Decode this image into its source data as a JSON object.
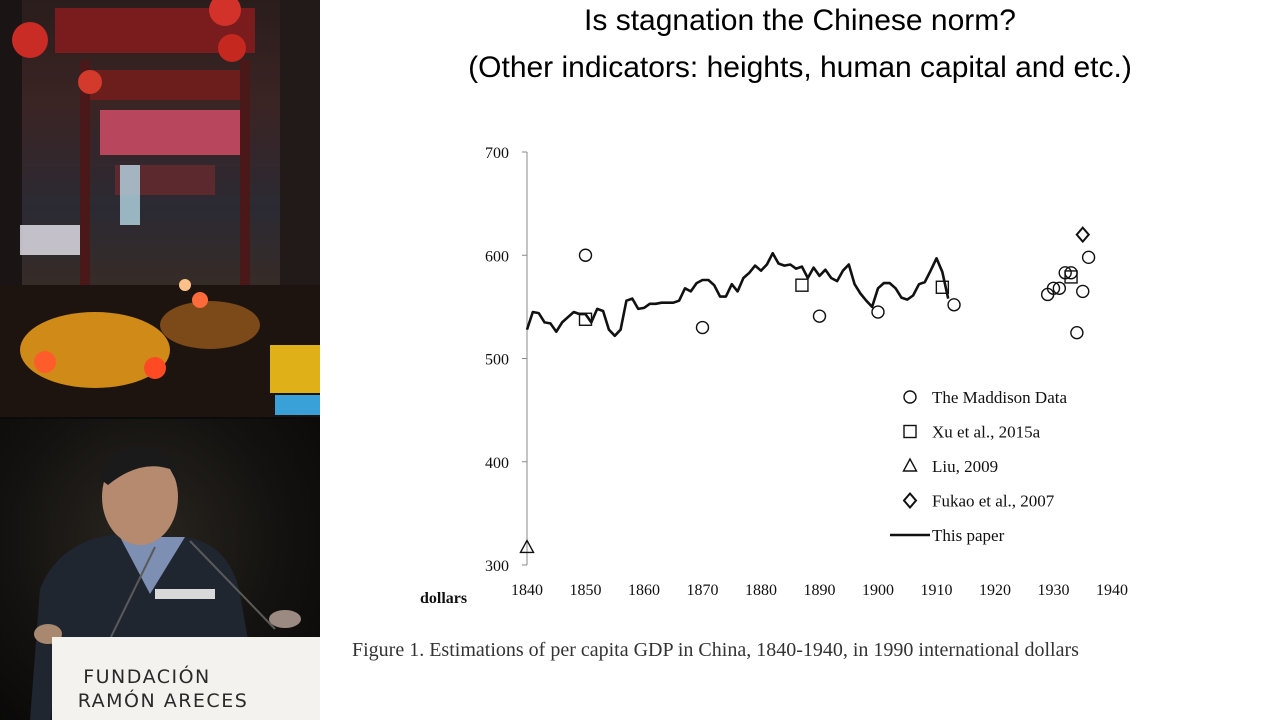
{
  "slide": {
    "title_line1": "Is stagnation the Chinese norm?",
    "title_line2": "(Other indicators: heights, human capital and etc.)",
    "caption": "Figure 1.  Estimations of per capita GDP in China, 1840-1940, in 1990 international dollars"
  },
  "podium": {
    "line1": "FUNDACIÓN",
    "line2": "RAMÓN ARECES"
  },
  "colors": {
    "ink": "#111111",
    "background": "#ffffff"
  },
  "chart_data": {
    "type": "line",
    "title": "",
    "xlabel": "dollars",
    "ylabel": "",
    "xlim": [
      1840,
      1940
    ],
    "ylim": [
      300,
      700
    ],
    "x_ticks": [
      1840,
      1850,
      1860,
      1870,
      1880,
      1890,
      1900,
      1910,
      1920,
      1930,
      1940
    ],
    "y_ticks": [
      300,
      400,
      500,
      600,
      700
    ],
    "legend_position": "lower-right",
    "grid": false,
    "series": [
      {
        "name": "The Maddison Data",
        "marker": "circle",
        "points": [
          [
            1850,
            600
          ],
          [
            1870,
            530
          ],
          [
            1890,
            541
          ],
          [
            1900,
            545
          ],
          [
            1913,
            552
          ],
          [
            1929,
            562
          ],
          [
            1930,
            568
          ],
          [
            1931,
            568
          ],
          [
            1932,
            583
          ],
          [
            1933,
            583
          ],
          [
            1934,
            525
          ],
          [
            1935,
            565
          ],
          [
            1936,
            598
          ]
        ]
      },
      {
        "name": "Xu et al., 2015a",
        "marker": "square",
        "points": [
          [
            1850,
            538
          ],
          [
            1887,
            571
          ],
          [
            1911,
            569
          ],
          [
            1933,
            579
          ]
        ]
      },
      {
        "name": "Liu, 2009",
        "marker": "triangle",
        "points": [
          [
            1840,
            317
          ]
        ]
      },
      {
        "name": "Fukao et al., 2007",
        "marker": "diamond",
        "points": [
          [
            1935,
            620
          ]
        ]
      },
      {
        "name": "This paper",
        "marker": "line",
        "points": [
          [
            1840,
            528
          ],
          [
            1841,
            545
          ],
          [
            1842,
            544
          ],
          [
            1843,
            535
          ],
          [
            1844,
            534
          ],
          [
            1845,
            526
          ],
          [
            1846,
            535
          ],
          [
            1847,
            540
          ],
          [
            1848,
            545
          ],
          [
            1849,
            543
          ],
          [
            1850,
            543
          ],
          [
            1851,
            535
          ],
          [
            1852,
            548
          ],
          [
            1853,
            546
          ],
          [
            1854,
            528
          ],
          [
            1855,
            522
          ],
          [
            1856,
            528
          ],
          [
            1857,
            556
          ],
          [
            1858,
            558
          ],
          [
            1859,
            548
          ],
          [
            1860,
            549
          ],
          [
            1861,
            553
          ],
          [
            1862,
            553
          ],
          [
            1863,
            554
          ],
          [
            1864,
            554
          ],
          [
            1865,
            554
          ],
          [
            1866,
            556
          ],
          [
            1867,
            568
          ],
          [
            1868,
            565
          ],
          [
            1869,
            573
          ],
          [
            1870,
            576
          ],
          [
            1871,
            576
          ],
          [
            1872,
            571
          ],
          [
            1873,
            560
          ],
          [
            1874,
            560
          ],
          [
            1875,
            572
          ],
          [
            1876,
            565
          ],
          [
            1877,
            578
          ],
          [
            1878,
            583
          ],
          [
            1879,
            590
          ],
          [
            1880,
            585
          ],
          [
            1881,
            591
          ],
          [
            1882,
            602
          ],
          [
            1883,
            592
          ],
          [
            1884,
            590
          ],
          [
            1885,
            591
          ],
          [
            1886,
            587
          ],
          [
            1887,
            589
          ],
          [
            1888,
            578
          ],
          [
            1889,
            588
          ],
          [
            1890,
            580
          ],
          [
            1891,
            586
          ],
          [
            1892,
            578
          ],
          [
            1893,
            575
          ],
          [
            1894,
            585
          ],
          [
            1895,
            591
          ],
          [
            1896,
            572
          ],
          [
            1897,
            563
          ],
          [
            1898,
            556
          ],
          [
            1899,
            550
          ],
          [
            1900,
            568
          ],
          [
            1901,
            573
          ],
          [
            1902,
            573
          ],
          [
            1903,
            568
          ],
          [
            1904,
            559
          ],
          [
            1905,
            557
          ],
          [
            1906,
            561
          ],
          [
            1907,
            572
          ],
          [
            1908,
            574
          ],
          [
            1909,
            585
          ],
          [
            1910,
            597
          ],
          [
            1911,
            584
          ],
          [
            1912,
            558
          ]
        ]
      }
    ]
  }
}
